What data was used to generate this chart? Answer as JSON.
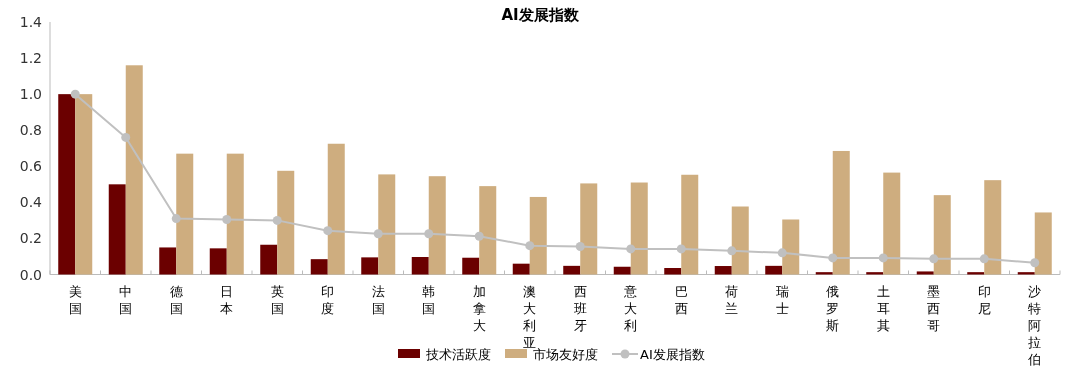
{
  "chart_data": {
    "type": "bar",
    "title": "AI发展指数",
    "categories": [
      "美国",
      "中国",
      "德国",
      "日本",
      "英国",
      "印度",
      "法国",
      "韩国",
      "加拿大",
      "澳大利亚",
      "西班牙",
      "意大利",
      "巴西",
      "荷兰",
      "瑞士",
      "俄罗斯",
      "土耳其",
      "墨西哥",
      "印尼",
      "沙特阿拉伯"
    ],
    "series": [
      {
        "name": "技术活跃度",
        "color": "#6b0000",
        "values": [
          1.0,
          0.5,
          0.15,
          0.145,
          0.165,
          0.085,
          0.095,
          0.097,
          0.093,
          0.06,
          0.048,
          0.043,
          0.036,
          0.047,
          0.048,
          0.013,
          0.013,
          0.017,
          0.013,
          0.013
        ]
      },
      {
        "name": "市场友好度",
        "color": "#cead7f",
        "values": [
          1.0,
          1.16,
          0.67,
          0.67,
          0.575,
          0.725,
          0.555,
          0.545,
          0.49,
          0.43,
          0.505,
          0.51,
          0.553,
          0.377,
          0.305,
          0.685,
          0.565,
          0.44,
          0.523,
          0.344
        ]
      },
      {
        "name": "AI发展指数",
        "type": "line",
        "color": "#c0c0c0",
        "values": [
          1.0,
          0.76,
          0.31,
          0.305,
          0.3,
          0.243,
          0.226,
          0.226,
          0.212,
          0.16,
          0.155,
          0.142,
          0.142,
          0.131,
          0.12,
          0.092,
          0.092,
          0.087,
          0.087,
          0.065
        ]
      }
    ],
    "ylim": [
      0,
      1.4
    ],
    "yticks": [
      {
        "value": 0,
        "label": "0.0"
      },
      {
        "value": 0.2,
        "label": "0.2"
      },
      {
        "value": 0.4,
        "label": "0.4"
      },
      {
        "value": 0.6,
        "label": "0.6"
      },
      {
        "value": 0.8,
        "label": "0.8"
      },
      {
        "value": 1.0,
        "label": "1.0"
      },
      {
        "value": 1.2,
        "label": "1.2"
      },
      {
        "value": 1.4,
        "label": "1.4"
      }
    ],
    "grid": false,
    "legend": "bottom",
    "marker": "circle"
  }
}
